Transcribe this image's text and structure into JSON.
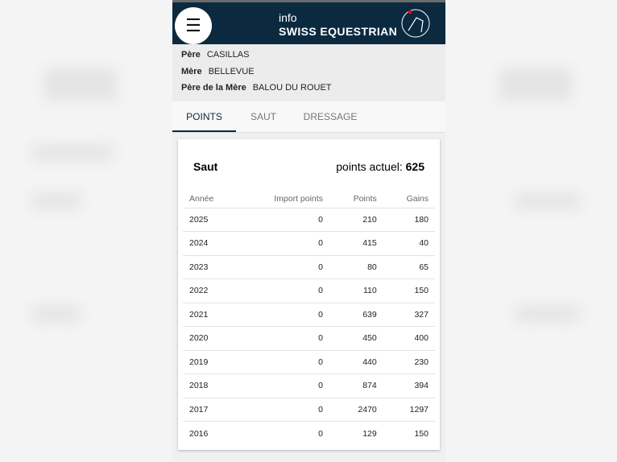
{
  "header": {
    "line1": "info",
    "line2": "SWISS EQUESTRIAN",
    "logo_text": "SWISS EQUESTRIAN",
    "menu_icon": "hamburger-icon",
    "color": "#0b2a40"
  },
  "pedigree": [
    {
      "label": "Père",
      "value": "CASILLAS"
    },
    {
      "label": "Mère",
      "value": "BELLEVUE"
    },
    {
      "label": "Père de la Mère",
      "value": "BALOU DU ROUET"
    }
  ],
  "tabs": [
    {
      "label": "POINTS",
      "active": true
    },
    {
      "label": "SAUT"
    },
    {
      "label": "DRESSAGE"
    }
  ],
  "card": {
    "title": "Saut",
    "points_label": "points actuel:",
    "points_value": "625",
    "columns": [
      "Année",
      "Import points",
      "Points",
      "Gains"
    ],
    "rows": [
      [
        "2025",
        "0",
        "210",
        "180"
      ],
      [
        "2024",
        "0",
        "415",
        "40"
      ],
      [
        "2023",
        "0",
        "80",
        "65"
      ],
      [
        "2022",
        "0",
        "110",
        "150"
      ],
      [
        "2021",
        "0",
        "639",
        "327"
      ],
      [
        "2020",
        "0",
        "450",
        "400"
      ],
      [
        "2019",
        "0",
        "440",
        "230"
      ],
      [
        "2018",
        "0",
        "874",
        "394"
      ],
      [
        "2017",
        "0",
        "2470",
        "1297"
      ],
      [
        "2016",
        "0",
        "129",
        "150"
      ]
    ]
  }
}
